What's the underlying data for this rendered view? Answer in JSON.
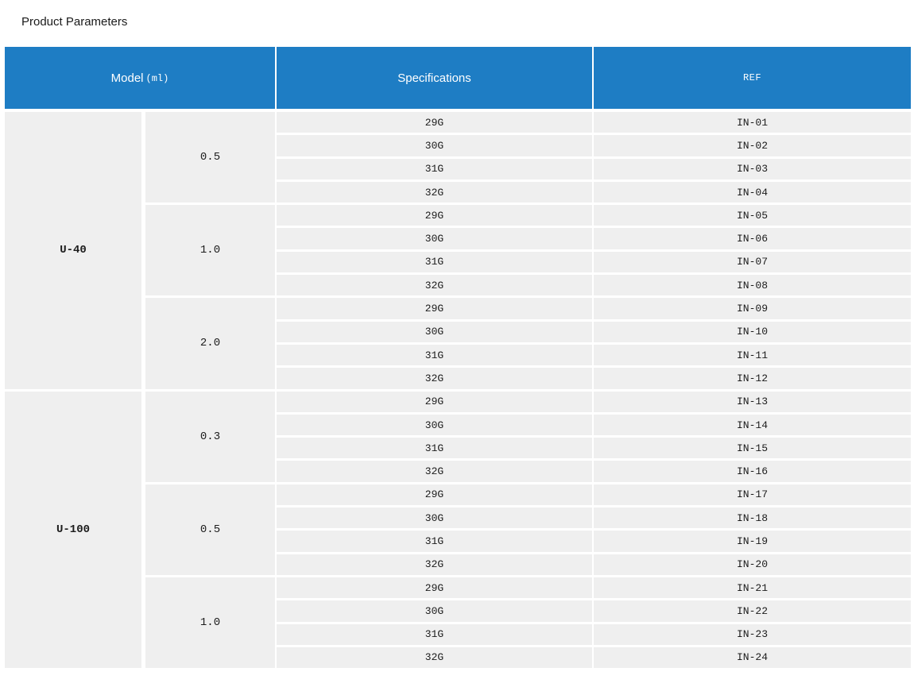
{
  "page": {
    "title": "Product Parameters"
  },
  "table": {
    "colors": {
      "header_bg": "#1e7dc4",
      "row_bg": "#efefef",
      "header_text": "#ffffff"
    },
    "header": {
      "model": "Model",
      "model_unit": "(ml)",
      "specifications": "Specifications",
      "ref": "REF"
    },
    "groups": [
      {
        "model": "U-40",
        "volumes": [
          {
            "volume": "0.5",
            "rows": [
              {
                "spec": "29G",
                "ref": "IN-01"
              },
              {
                "spec": "30G",
                "ref": "IN-02"
              },
              {
                "spec": "31G",
                "ref": "IN-03"
              },
              {
                "spec": "32G",
                "ref": "IN-04"
              }
            ]
          },
          {
            "volume": "1.0",
            "rows": [
              {
                "spec": "29G",
                "ref": "IN-05"
              },
              {
                "spec": "30G",
                "ref": "IN-06"
              },
              {
                "spec": "31G",
                "ref": "IN-07"
              },
              {
                "spec": "32G",
                "ref": "IN-08"
              }
            ]
          },
          {
            "volume": "2.0",
            "rows": [
              {
                "spec": "29G",
                "ref": "IN-09"
              },
              {
                "spec": "30G",
                "ref": "IN-10"
              },
              {
                "spec": "31G",
                "ref": "IN-11"
              },
              {
                "spec": "32G",
                "ref": "IN-12"
              }
            ]
          }
        ]
      },
      {
        "model": "U-100",
        "volumes": [
          {
            "volume": "0.3",
            "rows": [
              {
                "spec": "29G",
                "ref": "IN-13"
              },
              {
                "spec": "30G",
                "ref": "IN-14"
              },
              {
                "spec": "31G",
                "ref": "IN-15"
              },
              {
                "spec": "32G",
                "ref": "IN-16"
              }
            ]
          },
          {
            "volume": "0.5",
            "rows": [
              {
                "spec": "29G",
                "ref": "IN-17"
              },
              {
                "spec": "30G",
                "ref": "IN-18"
              },
              {
                "spec": "31G",
                "ref": "IN-19"
              },
              {
                "spec": "32G",
                "ref": "IN-20"
              }
            ]
          },
          {
            "volume": "1.0",
            "rows": [
              {
                "spec": "29G",
                "ref": "IN-21"
              },
              {
                "spec": "30G",
                "ref": "IN-22"
              },
              {
                "spec": "31G",
                "ref": "IN-23"
              },
              {
                "spec": "32G",
                "ref": "IN-24"
              }
            ]
          }
        ]
      }
    ]
  }
}
